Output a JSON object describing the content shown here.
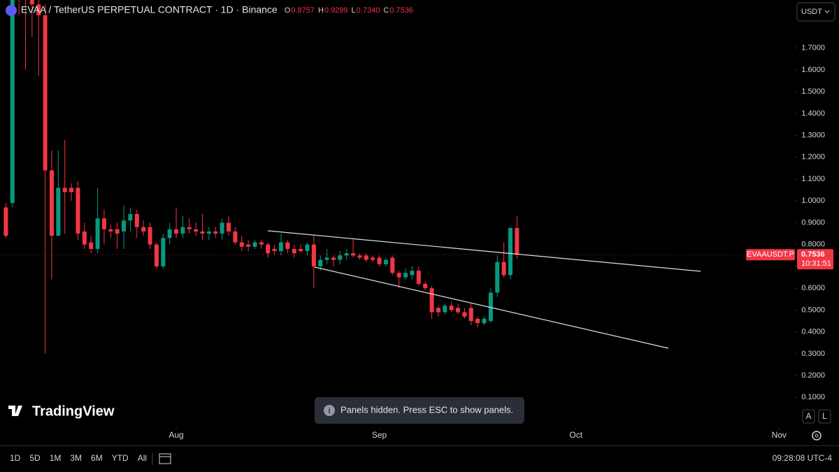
{
  "chart_data": {
    "type": "candlestick",
    "title": "EVAA / TetherUS PERPETUAL CONTRACT · 1D · Binance",
    "symbol_label": "EVAAUSDT.P",
    "up_color": "#089981",
    "down_color": "#f23645",
    "open": [
      0.97,
      0.99,
      2.2,
      2.0,
      1.95,
      1.9,
      1.85,
      1.14,
      0.84,
      1.06,
      1.06,
      1.06,
      0.86,
      0.81,
      0.78,
      0.92,
      0.87,
      0.87,
      0.86,
      0.91,
      0.94,
      0.88,
      0.88,
      0.8,
      0.7,
      0.83,
      0.87,
      0.85,
      0.88,
      0.87,
      0.86,
      0.85,
      0.86,
      0.85,
      0.9,
      0.86,
      0.81,
      0.8,
      0.79,
      0.81,
      0.8,
      0.78,
      0.77,
      0.81,
      0.78,
      0.78,
      0.77,
      0.8,
      0.7,
      0.73,
      0.74,
      0.73,
      0.75,
      0.76,
      0.75,
      0.75,
      0.74,
      0.74,
      0.71,
      0.74,
      0.67,
      0.65,
      0.66,
      0.68,
      0.62,
      0.6,
      0.51,
      0.49,
      0.52,
      0.51,
      0.49,
      0.51,
      0.46,
      0.44,
      0.45,
      0.58,
      0.72,
      0.66,
      0.8757
    ],
    "high": [
      0.99,
      2.3,
      2.4,
      2.2,
      2.1,
      2.0,
      1.9,
      1.23,
      1.23,
      1.28,
      1.08,
      1.09,
      0.9,
      0.84,
      1.06,
      0.96,
      0.89,
      0.9,
      0.98,
      0.97,
      0.96,
      0.91,
      0.9,
      0.81,
      0.85,
      0.9,
      0.97,
      0.93,
      0.92,
      0.9,
      0.94,
      0.88,
      0.88,
      0.92,
      0.93,
      0.88,
      0.84,
      0.82,
      0.82,
      0.82,
      0.81,
      0.8,
      0.85,
      0.82,
      0.8,
      0.8,
      0.81,
      0.84,
      0.75,
      0.78,
      0.75,
      0.77,
      0.78,
      0.83,
      0.76,
      0.76,
      0.75,
      0.75,
      0.74,
      0.75,
      0.68,
      0.69,
      0.7,
      0.7,
      0.63,
      0.61,
      0.52,
      0.53,
      0.54,
      0.53,
      0.51,
      0.53,
      0.47,
      0.47,
      0.6,
      0.75,
      0.81,
      0.88,
      0.9299
    ],
    "low": [
      0.83,
      0.97,
      1.85,
      1.6,
      1.75,
      1.57,
      0.3,
      0.64,
      0.84,
      0.85,
      1.0,
      0.82,
      0.78,
      0.76,
      0.76,
      0.8,
      0.83,
      0.78,
      0.78,
      0.86,
      0.83,
      0.84,
      0.78,
      0.69,
      0.69,
      0.8,
      0.83,
      0.83,
      0.85,
      0.84,
      0.82,
      0.82,
      0.83,
      0.82,
      0.84,
      0.8,
      0.77,
      0.77,
      0.78,
      0.78,
      0.74,
      0.75,
      0.75,
      0.76,
      0.74,
      0.76,
      0.75,
      0.6,
      0.68,
      0.71,
      0.7,
      0.71,
      0.73,
      0.74,
      0.73,
      0.72,
      0.72,
      0.7,
      0.7,
      0.66,
      0.6,
      0.64,
      0.64,
      0.61,
      0.59,
      0.46,
      0.47,
      0.48,
      0.49,
      0.48,
      0.46,
      0.43,
      0.42,
      0.43,
      0.44,
      0.56,
      0.65,
      0.64,
      0.734
    ],
    "close": [
      0.84,
      2.2,
      2.0,
      1.95,
      1.9,
      1.85,
      1.14,
      0.84,
      1.06,
      1.04,
      1.04,
      0.85,
      0.8,
      0.78,
      0.92,
      0.87,
      0.86,
      0.85,
      0.91,
      0.94,
      0.88,
      0.86,
      0.8,
      0.7,
      0.83,
      0.87,
      0.85,
      0.88,
      0.87,
      0.86,
      0.85,
      0.86,
      0.85,
      0.9,
      0.86,
      0.81,
      0.79,
      0.79,
      0.81,
      0.8,
      0.76,
      0.77,
      0.81,
      0.78,
      0.76,
      0.77,
      0.8,
      0.7,
      0.73,
      0.74,
      0.73,
      0.75,
      0.76,
      0.75,
      0.74,
      0.73,
      0.73,
      0.71,
      0.73,
      0.67,
      0.65,
      0.67,
      0.68,
      0.62,
      0.6,
      0.49,
      0.49,
      0.52,
      0.5,
      0.49,
      0.47,
      0.45,
      0.44,
      0.46,
      0.58,
      0.72,
      0.66,
      0.8757,
      0.7536
    ],
    "ohlc_legend": [
      {
        "key": "O",
        "value": "0.8757"
      },
      {
        "key": "H",
        "value": "0.9299"
      },
      {
        "key": "L",
        "value": "0.7340"
      },
      {
        "key": "C",
        "value": "0.7536"
      }
    ],
    "last_price_label": "0.7536",
    "countdown": "10:31:51",
    "xlim": [
      -1,
      120
    ],
    "xticks": [
      {
        "value": 26,
        "label": "Aug"
      },
      {
        "value": 57,
        "label": "Sep"
      },
      {
        "value": 87,
        "label": "Oct"
      },
      {
        "value": 118,
        "label": "Nov"
      }
    ],
    "ylim": [
      -0.12,
      1.92
    ],
    "yticks": [
      {
        "value": 0.1,
        "label": "0.1000"
      },
      {
        "value": 0.2,
        "label": "0.2000"
      },
      {
        "value": 0.3,
        "label": "0.3000"
      },
      {
        "value": 0.4,
        "label": "0.4000"
      },
      {
        "value": 0.5,
        "label": "0.5000"
      },
      {
        "value": 0.6,
        "label": "0.6000"
      },
      {
        "value": 0.7,
        "label": "0.7000"
      },
      {
        "value": 0.8,
        "label": "0.8000"
      },
      {
        "value": 0.9,
        "label": "0.9000"
      },
      {
        "value": 1.0,
        "label": "1.0000"
      },
      {
        "value": 1.1,
        "label": "1.1000"
      },
      {
        "value": 1.2,
        "label": "1.2000"
      },
      {
        "value": 1.3,
        "label": "1.3000"
      },
      {
        "value": 1.4,
        "label": "1.4000"
      },
      {
        "value": 1.5,
        "label": "1.5000"
      },
      {
        "value": 1.6,
        "label": "1.6000"
      },
      {
        "value": 1.7,
        "label": "1.7000"
      }
    ],
    "grid": false
  },
  "ui": {
    "currency": "USDT",
    "logo": "TradingView",
    "toast": "Panels hidden. Press ESC to show panels.",
    "scale_buttons": [
      "A",
      "L"
    ],
    "ranges": [
      "1D",
      "5D",
      "1M",
      "3M",
      "6M",
      "YTD",
      "All"
    ],
    "clock": "09:28:08 UTC-4"
  }
}
